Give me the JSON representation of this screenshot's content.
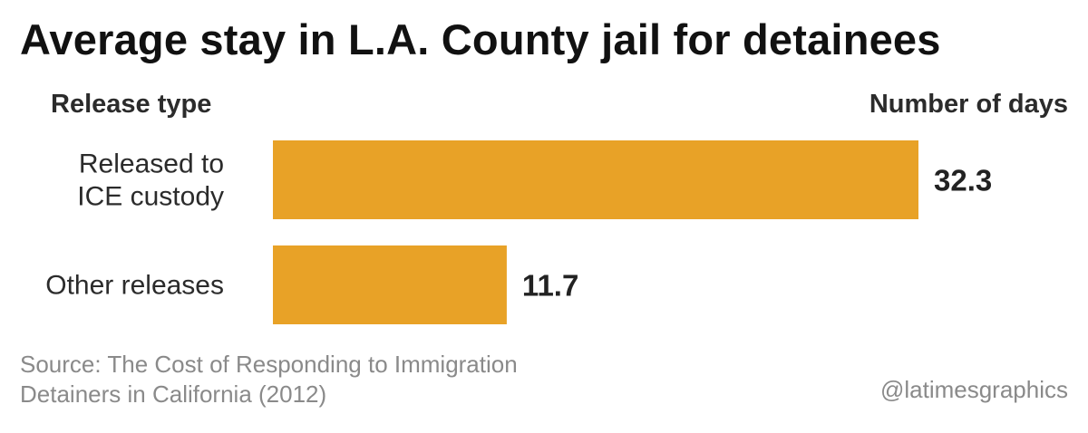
{
  "chart_data": {
    "type": "bar",
    "orientation": "horizontal",
    "title": "Average stay in L.A. County jail for detainees",
    "category_axis_label": "Release type",
    "value_axis_label": "Number of days",
    "categories": [
      [
        "Released to",
        "ICE custody"
      ],
      [
        "Other releases"
      ]
    ],
    "values": [
      32.3,
      11.7
    ],
    "value_labels": [
      "32.3",
      "11.7"
    ],
    "xlim": [
      0,
      32.3
    ],
    "grid": false,
    "legend": "none",
    "bar_color": "#E8A227"
  },
  "footer": {
    "source_line1": "Source: The Cost of Responding to Immigration",
    "source_line2": "Detainers in California (2012)",
    "credit": "@latimesgraphics"
  }
}
